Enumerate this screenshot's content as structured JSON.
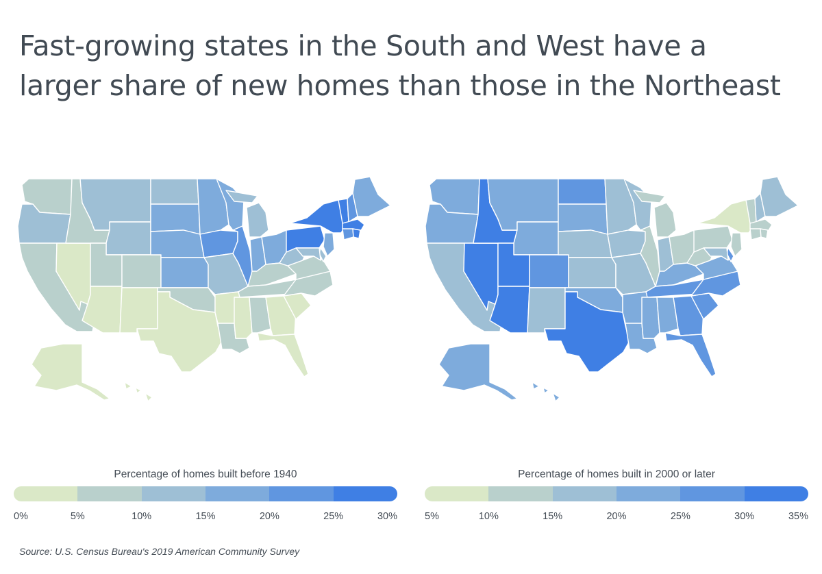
{
  "title": "Fast-growing states in the South and West have a larger share of new homes than those in the Northeast",
  "title_line1": "Fast-growing states in the South and West have a",
  "title_line2": "larger share of new homes than those in the Northeast",
  "colors": {
    "c0": "#dae8c7",
    "c1": "#b9d0cc",
    "c2": "#9ebfd5",
    "c3": "#7eabdc",
    "c4": "#6096e0",
    "c5": "#3f7fe4"
  },
  "source": "Source: U.S. Census Bureau's 2019 American Community Survey",
  "chart_data": [
    {
      "type": "choropleth",
      "legend_title": "Percentage of homes built before 1940",
      "legend_ticks": [
        "0%",
        "5%",
        "10%",
        "15%",
        "20%",
        "25%",
        "30%"
      ],
      "bins": [
        "0-5",
        "5-10",
        "10-15",
        "15-20",
        "20-25",
        "25-30"
      ],
      "unit": "%",
      "states": {
        "WA": 1,
        "OR": 2,
        "CA": 1,
        "NV": 0,
        "ID": 1,
        "MT": 2,
        "WY": 2,
        "UT": 1,
        "AZ": 0,
        "CO": 1,
        "NM": 0,
        "ND": 2,
        "SD": 3,
        "NE": 3,
        "KS": 3,
        "OK": 1,
        "TX": 0,
        "MN": 3,
        "IA": 4,
        "MO": 2,
        "AR": 0,
        "LA": 1,
        "WI": 3,
        "IL": 4,
        "MI": 2,
        "IN": 3,
        "OH": 3,
        "KY": 1,
        "TN": 1,
        "MS": 0,
        "AL": 1,
        "GA": 0,
        "FL": 0,
        "SC": 0,
        "NC": 1,
        "VA": 1,
        "WV": 2,
        "PA": 5,
        "NY": 5,
        "NJ": 3,
        "DE": 2,
        "MD": 2,
        "VT": 5,
        "NH": 4,
        "ME": 3,
        "MA": 5,
        "CT": 4,
        "RI": 5,
        "AK": 0,
        "HI": 0
      }
    },
    {
      "type": "choropleth",
      "legend_title": "Percentage of homes built in 2000 or later",
      "legend_ticks": [
        "5%",
        "10%",
        "15%",
        "20%",
        "25%",
        "30%",
        "35%"
      ],
      "bins": [
        "5-10",
        "10-15",
        "15-20",
        "20-25",
        "25-30",
        "30-35"
      ],
      "unit": "%",
      "states": {
        "WA": 3,
        "OR": 3,
        "CA": 2,
        "NV": 5,
        "ID": 5,
        "MT": 3,
        "WY": 3,
        "UT": 5,
        "AZ": 5,
        "CO": 4,
        "NM": 2,
        "ND": 4,
        "SD": 3,
        "NE": 2,
        "KS": 2,
        "OK": 3,
        "TX": 5,
        "MN": 2,
        "IA": 2,
        "MO": 2,
        "AR": 3,
        "LA": 3,
        "WI": 2,
        "IL": 1,
        "MI": 1,
        "IN": 2,
        "OH": 1,
        "KY": 3,
        "TN": 4,
        "MS": 3,
        "AL": 3,
        "GA": 4,
        "FL": 4,
        "SC": 4,
        "NC": 4,
        "VA": 3,
        "WV": 1,
        "PA": 1,
        "NY": 0,
        "NJ": 1,
        "DE": 4,
        "MD": 2,
        "VT": 1,
        "NH": 2,
        "ME": 2,
        "MA": 1,
        "CT": 1,
        "RI": 1,
        "AK": 3,
        "HI": 3
      }
    }
  ]
}
